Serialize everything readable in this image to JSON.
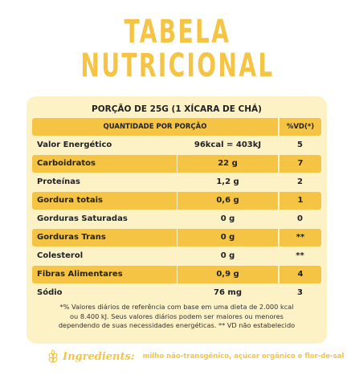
{
  "title": {
    "line1": "TABELA",
    "line2": "NUTRICIONAL"
  },
  "portion": "PORÇÃO DE 25G (1 XÍCARA DE CHÁ)",
  "header": {
    "quantity": "QUANTIDADE POR PORÇÃO",
    "vd": "%VD(*)"
  },
  "rows": [
    {
      "name": "Valor Energético",
      "amount": "96kcal = 403kJ",
      "vd": "5"
    },
    {
      "name": "Carboidratos",
      "amount": "22 g",
      "vd": "7"
    },
    {
      "name": "Proteínas",
      "amount": "1,2 g",
      "vd": "2"
    },
    {
      "name": "Gordura totais",
      "amount": "0,6 g",
      "vd": "1"
    },
    {
      "name": "Gorduras Saturadas",
      "amount": "0 g",
      "vd": "0"
    },
    {
      "name": "Gorduras Trans",
      "amount": "0 g",
      "vd": "**"
    },
    {
      "name": "Colesterol",
      "amount": "0 g",
      "vd": "**"
    },
    {
      "name": "Fibras Alimentares",
      "amount": "0,9 g",
      "vd": "4"
    },
    {
      "name": "Sódio",
      "amount": "76 mg",
      "vd": "3"
    }
  ],
  "footnote": {
    "line1": "*% Valores diários de referência com base em uma dieta de 2.000 kcal",
    "line2": "ou 8.400 kJ. Seus valores diários podem ser maiores ou menores",
    "line3": "dependendo de suas necessidades energéticas. ** VD não estabelecido"
  },
  "ingredients": {
    "label": "Ingredients:",
    "text": "milho não-transgênico, açúcar orgânico e flor-de-sal"
  },
  "colors": {
    "accent": "#f6c445",
    "card": "#fdf1c6"
  }
}
